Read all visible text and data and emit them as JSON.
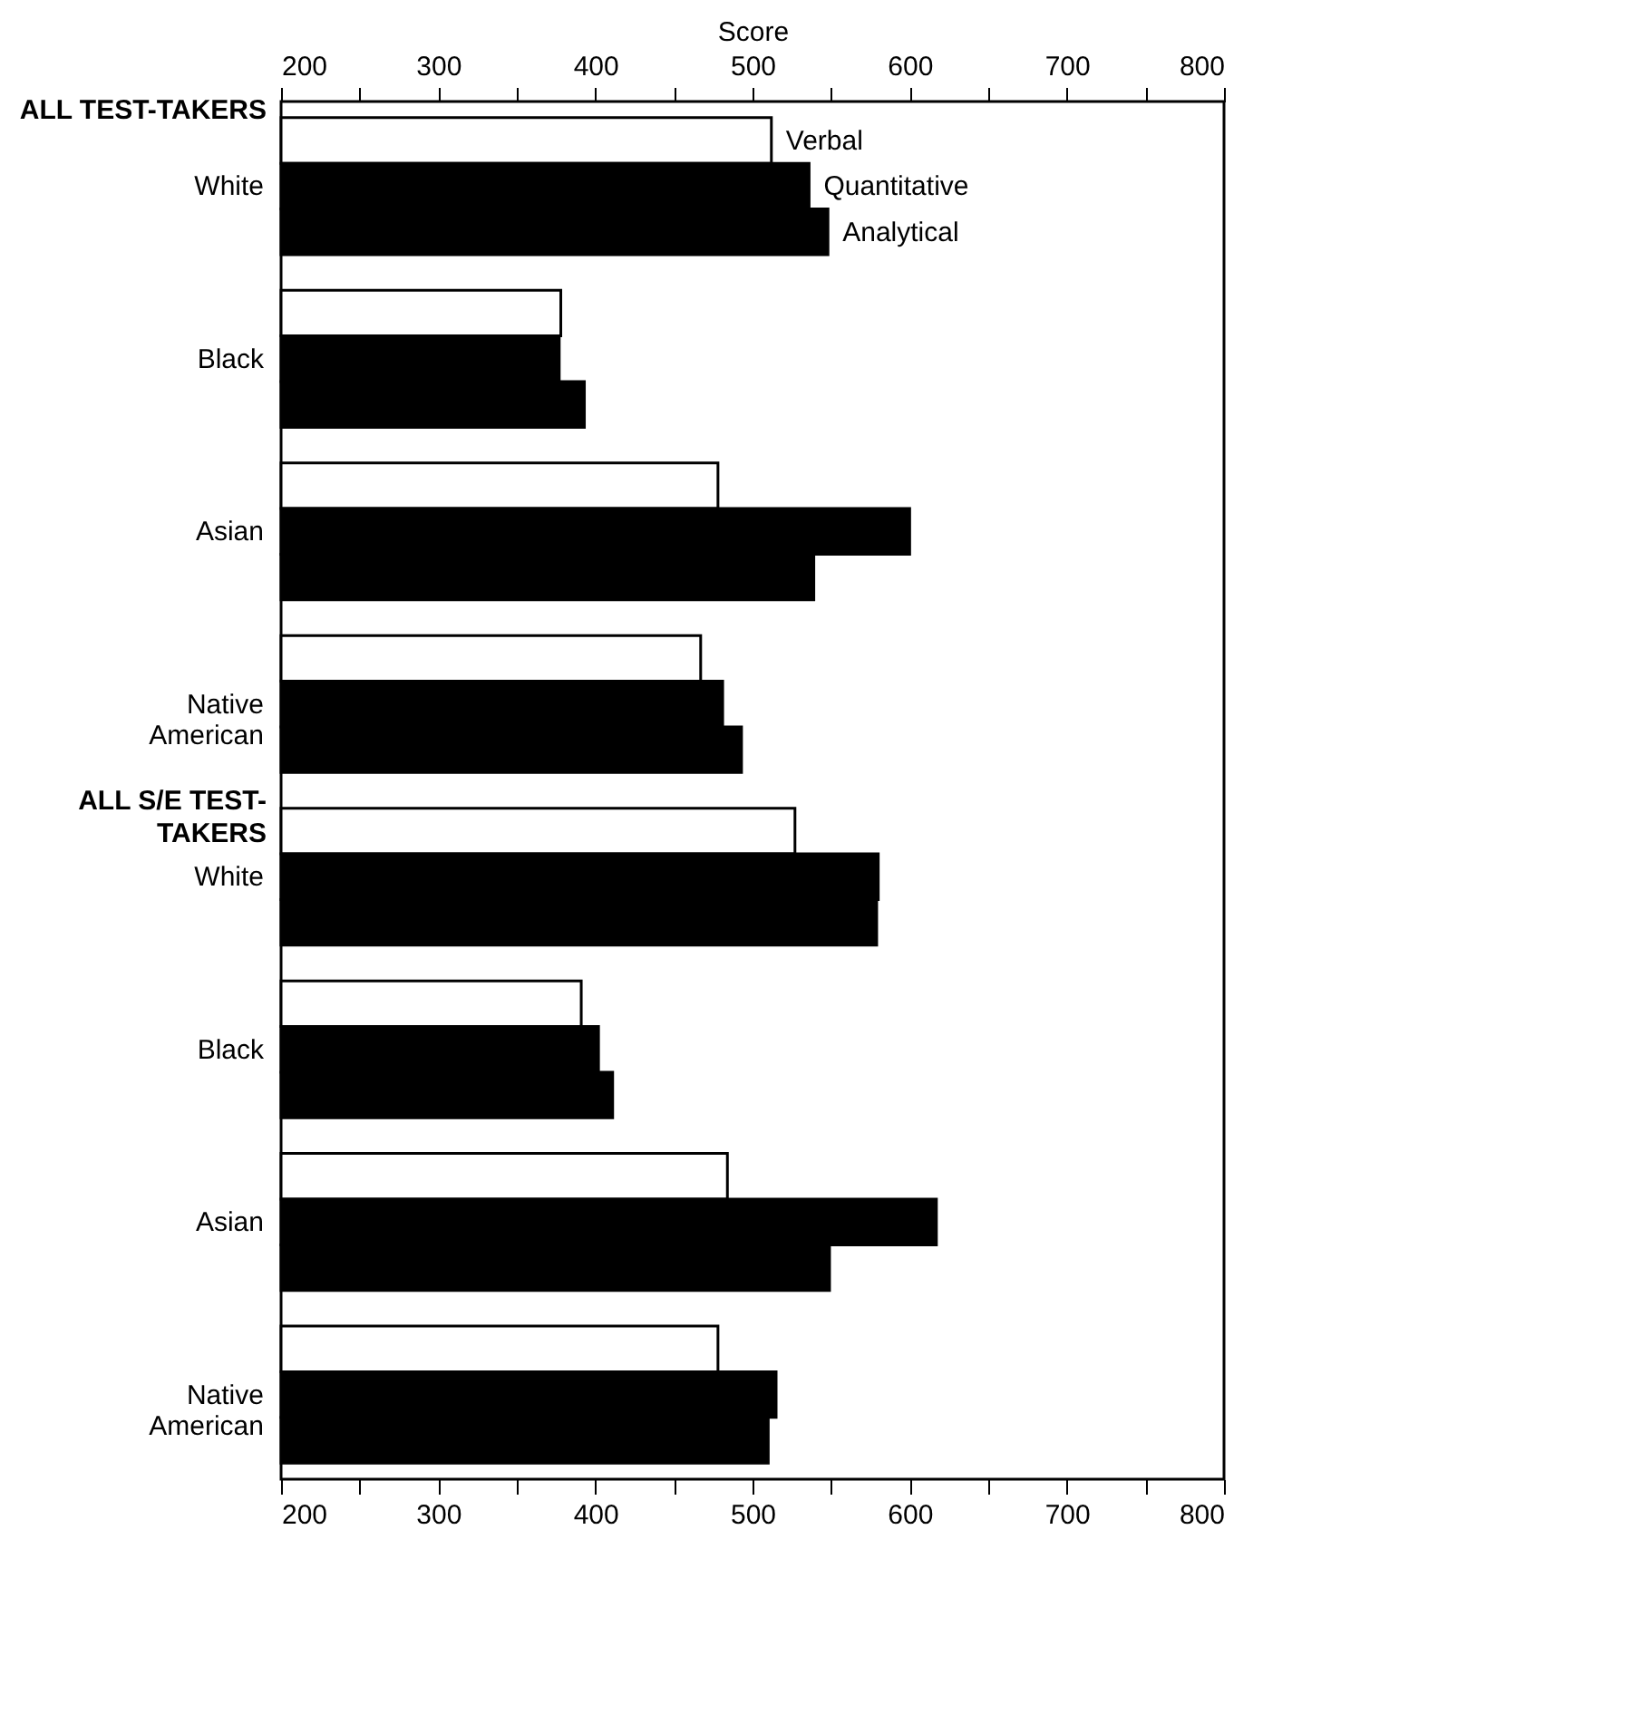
{
  "chart_data": {
    "type": "bar",
    "orientation": "horizontal",
    "x2label": "Score",
    "categories": [
      "White",
      "Black",
      "Asian",
      "Native American",
      "White",
      "Black",
      "Asian",
      "Native American"
    ],
    "series": [
      {
        "name": "Verbal",
        "color": "#ffffff",
        "values": [
          512,
          378,
          478,
          467,
          527,
          391,
          484,
          478
        ]
      },
      {
        "name": "Quantitative",
        "color": "#000000",
        "values": [
          536,
          377,
          600,
          481,
          580,
          402,
          617,
          515
        ]
      },
      {
        "name": "Analytical",
        "color": "#000000",
        "values": [
          548,
          393,
          539,
          493,
          579,
          411,
          549,
          510
        ]
      }
    ],
    "xlim": [
      200,
      800
    ],
    "xticks": [
      200,
      {
        "value": 250,
        "label": null
      },
      300,
      {
        "value": 350,
        "label": null
      },
      400,
      {
        "value": 450,
        "label": null
      },
      500,
      {
        "value": 550,
        "label": null
      },
      600,
      {
        "value": 650,
        "label": null
      },
      700,
      {
        "value": 750,
        "label": null
      },
      800
    ],
    "x2lim": [
      200,
      800
    ],
    "x2ticks": [
      200,
      {
        "value": 250,
        "label": null
      },
      300,
      {
        "value": 350,
        "label": null
      },
      400,
      {
        "value": 450,
        "label": null
      },
      500,
      {
        "value": 550,
        "label": null
      },
      600,
      {
        "value": 650,
        "label": null
      },
      700,
      {
        "value": 750,
        "label": null
      },
      800
    ],
    "annotations": [
      "ALL TEST-TAKERS",
      "ALL S/E TEST-TAKERS"
    ],
    "grid": false,
    "legend": false
  }
}
